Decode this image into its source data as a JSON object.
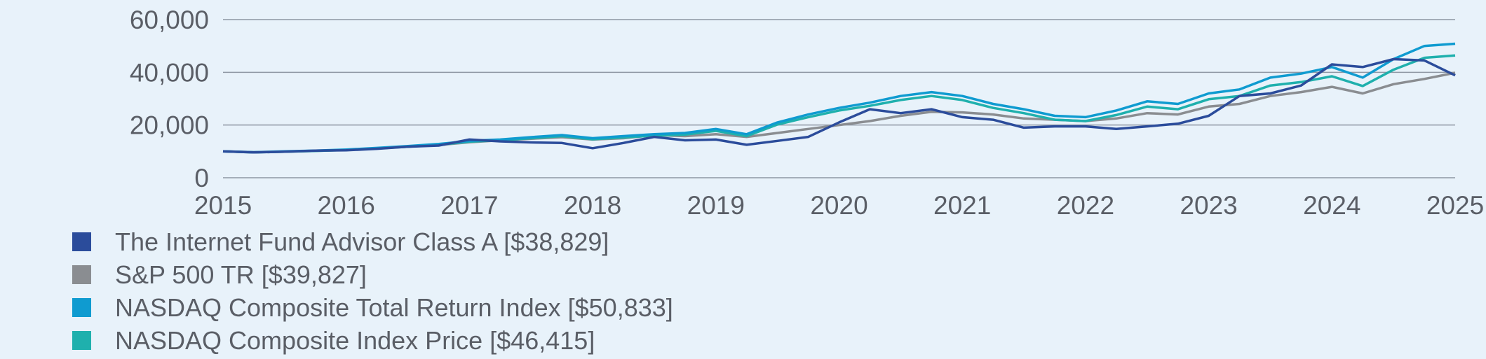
{
  "chart_data": {
    "type": "line",
    "title": "",
    "xlabel": "",
    "ylabel": "",
    "xlim": [
      2015,
      2025
    ],
    "ylim": [
      0,
      60000
    ],
    "x_ticks": [
      "2015",
      "2016",
      "2017",
      "2018",
      "2019",
      "2020",
      "2021",
      "2022",
      "2023",
      "2024",
      "2025"
    ],
    "y_ticks": [
      "0",
      "20,000",
      "40,000",
      "60,000"
    ],
    "y_tick_values": [
      0,
      20000,
      40000,
      60000
    ],
    "grid": true,
    "legend_position": "bottom-left",
    "x": [
      2015.0,
      2015.25,
      2015.5,
      2015.75,
      2016.0,
      2016.25,
      2016.5,
      2016.75,
      2017.0,
      2017.25,
      2017.5,
      2017.75,
      2018.0,
      2018.25,
      2018.5,
      2018.75,
      2019.0,
      2019.25,
      2019.5,
      2019.75,
      2020.0,
      2020.25,
      2020.5,
      2020.75,
      2021.0,
      2021.25,
      2021.5,
      2021.75,
      2022.0,
      2022.25,
      2022.5,
      2022.75,
      2023.0,
      2023.25,
      2023.5,
      2023.75,
      2024.0,
      2024.25,
      2024.5,
      2024.75,
      2025.0
    ],
    "series": [
      {
        "name": "The Internet Fund Advisor Class A [$38,829]",
        "color": "#2b4c9b",
        "values": [
          10000,
          9600,
          9900,
          10300,
          10400,
          11000,
          11800,
          12200,
          14500,
          13800,
          13400,
          13200,
          11200,
          13200,
          15500,
          14200,
          14500,
          12500,
          14000,
          15500,
          21000,
          26000,
          24500,
          26000,
          23000,
          22000,
          19000,
          19500,
          19500,
          18500,
          19500,
          20500,
          23500,
          31000,
          32000,
          35000,
          43000,
          42000,
          45000,
          44500,
          38829
        ]
      },
      {
        "name": "S&P 500 TR [$39,827]",
        "color": "#8a8d91",
        "values": [
          10000,
          9700,
          9900,
          10200,
          10600,
          11200,
          11800,
          12400,
          13500,
          14200,
          14800,
          15400,
          14500,
          15000,
          16200,
          15800,
          16500,
          15500,
          17000,
          18500,
          20000,
          21500,
          23500,
          25000,
          24800,
          24000,
          22500,
          22000,
          21500,
          22500,
          24500,
          24000,
          27000,
          28000,
          31000,
          32500,
          34500,
          32000,
          35500,
          37500,
          39827
        ]
      },
      {
        "name": "NASDAQ Composite Total Return Index [$50,833]",
        "color": "#0f9bd0",
        "values": [
          10000,
          9700,
          10000,
          10300,
          10700,
          11300,
          12000,
          12800,
          14000,
          14500,
          15400,
          16200,
          15000,
          15800,
          16500,
          17000,
          18500,
          16500,
          21000,
          24000,
          26500,
          28500,
          31000,
          32500,
          31000,
          28000,
          26000,
          23500,
          23000,
          25500,
          29000,
          28000,
          32000,
          33500,
          38000,
          39500,
          42000,
          38000,
          45000,
          50000,
          50833
        ]
      },
      {
        "name": "NASDAQ Composite Index Price [$46,415]",
        "color": "#1fb0ad",
        "values": [
          10000,
          9600,
          9900,
          10200,
          10500,
          11100,
          11800,
          12500,
          13700,
          14200,
          15000,
          15800,
          14600,
          15300,
          16000,
          16400,
          17800,
          15800,
          20200,
          23000,
          25500,
          27300,
          29500,
          31000,
          29500,
          26500,
          24500,
          22000,
          21500,
          23800,
          27000,
          26000,
          29800,
          31000,
          35000,
          36300,
          38500,
          34800,
          41000,
          45500,
          46415
        ]
      }
    ]
  }
}
